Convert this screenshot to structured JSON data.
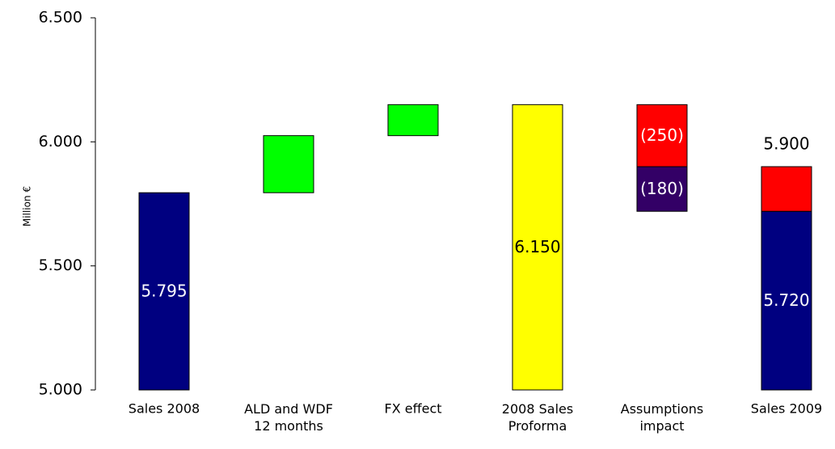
{
  "chart_data": {
    "type": "waterfall",
    "y_label": "Million €",
    "categories": [
      "Sales 2008",
      "ALD and WDF\n12 months",
      "FX effect",
      "2008 Sales\nProforma",
      "Assumptions\nimpact",
      "Sales 2009"
    ],
    "measure": [
      "absolute",
      "relative",
      "relative",
      "absolute",
      "relative",
      "absolute"
    ],
    "series": [
      {
        "color": "#000080",
        "label_color": "#ffffff",
        "values": [
          5795,
          null,
          null,
          null,
          null,
          5720
        ],
        "value_labels": [
          "5.795",
          null,
          null,
          null,
          null,
          "5.720"
        ]
      },
      {
        "color": "#00ff00",
        "label_color": "#000000",
        "values": [
          null,
          230,
          125,
          null,
          null,
          null
        ]
      },
      {
        "color": "#ffff00",
        "label_color": "#000000",
        "values": [
          null,
          null,
          null,
          6150,
          null,
          null
        ],
        "value_labels": [
          null,
          null,
          null,
          "6.150",
          null,
          null
        ]
      },
      {
        "color": "#ff0000",
        "label_color": "#ffffff",
        "values": [
          null,
          null,
          null,
          null,
          -250,
          180
        ],
        "value_labels": [
          null,
          null,
          null,
          null,
          "(250)",
          null
        ]
      },
      {
        "color": "#330066",
        "label_color": "#ffffff",
        "values": [
          null,
          null,
          null,
          null,
          -180,
          null
        ],
        "value_labels": [
          null,
          null,
          null,
          null,
          "(180)",
          null
        ]
      }
    ],
    "totals": {
      "values": [
        null,
        null,
        null,
        null,
        null,
        5900
      ],
      "value_labels": [
        null,
        null,
        null,
        null,
        null,
        "5.900"
      ]
    },
    "ylim": [
      5000,
      6500
    ],
    "yticks": [
      {
        "value": 5000,
        "label": "5.000"
      },
      {
        "value": 5500,
        "label": "5.500"
      },
      {
        "value": 6000,
        "label": "6.000"
      },
      {
        "value": 6500,
        "label": "6.500"
      }
    ],
    "grid": false
  }
}
